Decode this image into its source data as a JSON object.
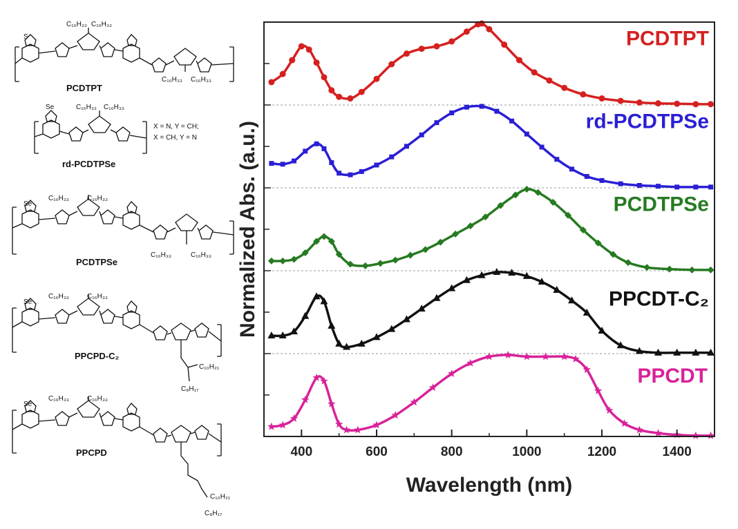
{
  "chemicals": [
    {
      "name": "PCDTPT",
      "substituent_labels": [
        "C₁₆H₃₃",
        "C₁₆H₃₃",
        "C₁₆H₃₃",
        "C₁₆H₃₃"
      ],
      "heteroatom": "S"
    },
    {
      "name": "rd-PCDTPSe",
      "substituent_labels": [
        "C₁₆H₃₃",
        "C₁₆H₃₃"
      ],
      "heteroatom": "Se",
      "note_lines": [
        "X = N, Y = CH;",
        "X = CH, Y = N"
      ]
    },
    {
      "name": "PCDTPSe",
      "substituent_labels": [
        "C₁₆H₃₃",
        "C₁₆H₃₃",
        "C₁₆H₃₃",
        "C₁₆H₃₃"
      ],
      "heteroatom": "Se"
    },
    {
      "name": "PPCPD-C₂",
      "substituent_labels": [
        "C₁₆H₃₃",
        "C₁₆H₃₃",
        "C₁₀H₂₁",
        "C₈H₁₇"
      ],
      "heteroatom": "Se"
    },
    {
      "name": "PPCPD",
      "substituent_labels": [
        "C₁₆H₃₃",
        "C₁₆H₃₃",
        "C₁₀H₂₁",
        "C₈H₁₇"
      ],
      "heteroatom": "Se"
    }
  ],
  "chart_data": {
    "type": "line",
    "title": "",
    "xlabel": "Wavelength (nm)",
    "ylabel": "Normalized Abs. (a.u.)",
    "xlim": [
      300,
      1500
    ],
    "xticks": [
      400,
      600,
      800,
      1000,
      1200,
      1400
    ],
    "offsets_stacked": true,
    "series": [
      {
        "name": "PCDTPT",
        "color": "#d62020",
        "marker": "circle",
        "x": [
          320,
          350,
          375,
          400,
          420,
          440,
          460,
          480,
          500,
          530,
          560,
          600,
          640,
          680,
          720,
          760,
          800,
          840,
          870,
          880,
          900,
          940,
          980,
          1020,
          1060,
          1100,
          1150,
          1200,
          1250,
          1300,
          1350,
          1400,
          1450,
          1490
        ],
        "y": [
          0.28,
          0.38,
          0.55,
          0.72,
          0.68,
          0.52,
          0.34,
          0.18,
          0.1,
          0.08,
          0.16,
          0.32,
          0.5,
          0.63,
          0.69,
          0.72,
          0.78,
          0.9,
          0.99,
          1.0,
          0.93,
          0.74,
          0.55,
          0.4,
          0.3,
          0.21,
          0.13,
          0.08,
          0.05,
          0.03,
          0.02,
          0.015,
          0.01,
          0.01
        ]
      },
      {
        "name": "rd-PCDTPSe",
        "color": "#2a1fd4",
        "marker": "square",
        "x": [
          320,
          350,
          380,
          410,
          440,
          460,
          480,
          500,
          530,
          560,
          600,
          640,
          680,
          720,
          760,
          800,
          840,
          880,
          920,
          960,
          1000,
          1040,
          1080,
          1120,
          1160,
          1200,
          1250,
          1300,
          1350,
          1400,
          1450,
          1490
        ],
        "y": [
          0.3,
          0.29,
          0.33,
          0.45,
          0.54,
          0.48,
          0.31,
          0.18,
          0.16,
          0.2,
          0.28,
          0.38,
          0.51,
          0.65,
          0.8,
          0.92,
          0.99,
          1.0,
          0.94,
          0.82,
          0.66,
          0.5,
          0.35,
          0.23,
          0.14,
          0.09,
          0.05,
          0.03,
          0.02,
          0.01,
          0.01,
          0.01
        ]
      },
      {
        "name": "PCDTPSe",
        "color": "#267a21",
        "marker": "diamond",
        "x": [
          320,
          350,
          380,
          410,
          440,
          460,
          480,
          500,
          530,
          570,
          610,
          650,
          690,
          730,
          770,
          810,
          850,
          890,
          930,
          970,
          1000,
          1030,
          1070,
          1110,
          1150,
          1190,
          1230,
          1270,
          1320,
          1380,
          1440,
          1490
        ],
        "y": [
          0.12,
          0.12,
          0.14,
          0.22,
          0.36,
          0.42,
          0.36,
          0.2,
          0.08,
          0.06,
          0.09,
          0.13,
          0.19,
          0.26,
          0.35,
          0.45,
          0.55,
          0.66,
          0.8,
          0.93,
          1.0,
          0.96,
          0.84,
          0.68,
          0.5,
          0.34,
          0.2,
          0.1,
          0.04,
          0.02,
          0.01,
          0.01
        ]
      },
      {
        "name": "PPCDT-C₂",
        "color": "#111111",
        "marker": "triangle",
        "x": [
          320,
          350,
          380,
          410,
          440,
          460,
          480,
          500,
          520,
          560,
          600,
          640,
          680,
          720,
          760,
          800,
          840,
          880,
          920,
          960,
          1000,
          1040,
          1080,
          1120,
          1160,
          1200,
          1250,
          1300,
          1350,
          1400,
          1450,
          1490
        ],
        "y": [
          0.22,
          0.22,
          0.27,
          0.46,
          0.7,
          0.64,
          0.34,
          0.12,
          0.08,
          0.12,
          0.2,
          0.3,
          0.42,
          0.55,
          0.68,
          0.8,
          0.9,
          0.96,
          1.0,
          0.99,
          0.95,
          0.88,
          0.78,
          0.65,
          0.5,
          0.28,
          0.1,
          0.03,
          0.01,
          0.01,
          0.01,
          0.01
        ]
      },
      {
        "name": "PPCDT",
        "color": "#d8229a",
        "marker": "star",
        "x": [
          320,
          350,
          380,
          410,
          440,
          460,
          480,
          500,
          520,
          550,
          600,
          650,
          700,
          750,
          800,
          850,
          900,
          950,
          1000,
          1050,
          1100,
          1130,
          1160,
          1190,
          1220,
          1260,
          1300,
          1350,
          1400,
          1450,
          1490
        ],
        "y": [
          0.12,
          0.14,
          0.22,
          0.45,
          0.72,
          0.68,
          0.4,
          0.15,
          0.08,
          0.08,
          0.14,
          0.26,
          0.42,
          0.6,
          0.77,
          0.9,
          0.98,
          1.0,
          0.98,
          0.98,
          0.98,
          0.95,
          0.82,
          0.56,
          0.32,
          0.16,
          0.08,
          0.04,
          0.02,
          0.01,
          0.01
        ]
      }
    ]
  }
}
